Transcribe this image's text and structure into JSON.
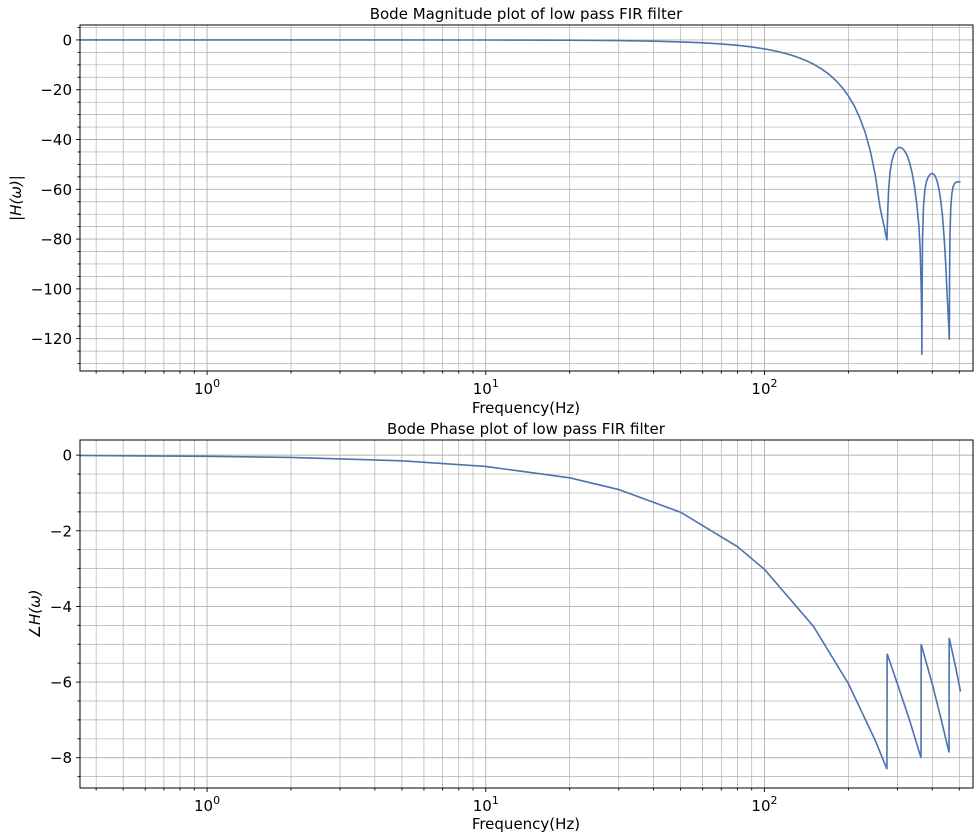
{
  "chart_data": [
    {
      "type": "line",
      "title": "Bode Magnitude plot of low pass FIR filter",
      "xlabel": "Frequency(Hz)",
      "ylabel": "|H(ω)|",
      "xscale": "log",
      "xlim": [
        0.35,
        560
      ],
      "ylim": [
        -133,
        6
      ],
      "xticks": [
        {
          "value": 1,
          "base": "10",
          "exp": "0"
        },
        {
          "value": 10,
          "base": "10",
          "exp": "1"
        },
        {
          "value": 100,
          "base": "10",
          "exp": "2"
        }
      ],
      "yticks": [
        {
          "value": 0,
          "label": "0"
        },
        {
          "value": -20,
          "label": "−20"
        },
        {
          "value": -40,
          "label": "−40"
        },
        {
          "value": -60,
          "label": "−60"
        },
        {
          "value": -80,
          "label": "−80"
        },
        {
          "value": -100,
          "label": "−100"
        },
        {
          "value": -120,
          "label": "−120"
        }
      ],
      "yminor_step": 5,
      "grid": true,
      "color": "#4c72b0",
      "series": [
        {
          "x": [
            0.35,
            1,
            3,
            10,
            20,
            30,
            40,
            50,
            60,
            70,
            80,
            90,
            100,
            110,
            120,
            130,
            140,
            150,
            160,
            170,
            180,
            190,
            200,
            210,
            220,
            230,
            240,
            250,
            260,
            270,
            275,
            277,
            279,
            282,
            286,
            291,
            297,
            303,
            310,
            317,
            324,
            331,
            338,
            345,
            352,
            358,
            362,
            365,
            366.5,
            367,
            367.5,
            369,
            372,
            376,
            381,
            387,
            393,
            399,
            405,
            411,
            417,
            423,
            429,
            435,
            441,
            447,
            452,
            456,
            459,
            460.5,
            461,
            461.5,
            463,
            466,
            470,
            475,
            481,
            487,
            493,
            499,
            505
          ],
          "y": [
            0,
            0,
            0,
            -0.03,
            -0.12,
            -0.27,
            -0.5,
            -0.79,
            -1.16,
            -1.62,
            -2.17,
            -2.82,
            -3.6,
            -4.5,
            -5.54,
            -6.75,
            -8.14,
            -9.75,
            -11.6,
            -13.7,
            -16.2,
            -19.1,
            -22.5,
            -26.5,
            -31.4,
            -37.3,
            -44.8,
            -54.5,
            -67.5,
            -76,
            -80.5,
            -68,
            -60,
            -53.5,
            -49,
            -46,
            -44,
            -43.2,
            -43.3,
            -44.3,
            -46.1,
            -49,
            -53,
            -58.5,
            -66,
            -74.5,
            -84,
            -100,
            -112,
            -126.5,
            -110,
            -80,
            -67,
            -60.5,
            -57,
            -55,
            -54,
            -53.6,
            -53.9,
            -55,
            -57,
            -60,
            -64.5,
            -70.5,
            -79,
            -90,
            -102,
            -110,
            -116,
            -120.5,
            -110,
            -95,
            -78,
            -67.5,
            -62,
            -59,
            -57.7,
            -57.1,
            -57,
            -57,
            -57
          ]
        }
      ]
    },
    {
      "type": "line",
      "title": "Bode Phase plot of low pass FIR filter",
      "xlabel": "Frequency(Hz)",
      "ylabel": "∠H(ω)",
      "xscale": "log",
      "xlim": [
        0.35,
        560
      ],
      "ylim": [
        -8.8,
        0.4
      ],
      "xticks": [
        {
          "value": 1,
          "base": "10",
          "exp": "0"
        },
        {
          "value": 10,
          "base": "10",
          "exp": "1"
        },
        {
          "value": 100,
          "base": "10",
          "exp": "2"
        }
      ],
      "yticks": [
        {
          "value": 0,
          "label": "0"
        },
        {
          "value": -2,
          "label": "−2"
        },
        {
          "value": -4,
          "label": "−4"
        },
        {
          "value": -6,
          "label": "−6"
        },
        {
          "value": -8,
          "label": "−8"
        }
      ],
      "yminor_step": 0.5,
      "grid": true,
      "color": "#4c72b0",
      "series": [
        {
          "x": [
            0.35,
            1,
            2,
            5,
            10,
            20,
            30,
            50,
            80,
            100,
            150,
            200,
            250,
            275,
            275.5,
            300,
            330,
            364.5,
            365,
            400,
            430,
            459.5,
            460,
            485,
            505
          ],
          "y": [
            -0.01,
            -0.03,
            -0.06,
            -0.15,
            -0.3,
            -0.6,
            -0.91,
            -1.51,
            -2.42,
            -3.02,
            -4.53,
            -6.04,
            -7.55,
            -8.3,
            -5.25,
            -6.05,
            -6.96,
            -8.0,
            -5.0,
            -6.05,
            -6.97,
            -7.86,
            -4.83,
            -5.6,
            -6.25
          ]
        }
      ]
    }
  ]
}
